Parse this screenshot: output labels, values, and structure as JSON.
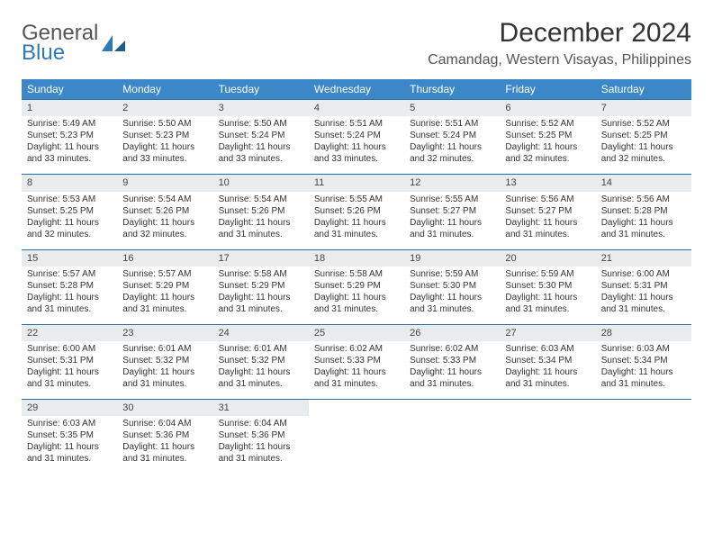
{
  "logo": {
    "line1": "General",
    "line2": "Blue"
  },
  "title": "December 2024",
  "location": "Camandag, Western Visayas, Philippines",
  "headerBg": "#3b87c8",
  "borderColor": "#2f6fa8",
  "dayNumBg": "#e9ecef",
  "weekdays": [
    "Sunday",
    "Monday",
    "Tuesday",
    "Wednesday",
    "Thursday",
    "Friday",
    "Saturday"
  ],
  "days": [
    {
      "n": "1",
      "sr": "5:49 AM",
      "ss": "5:23 PM",
      "dl": "11 hours and 33 minutes."
    },
    {
      "n": "2",
      "sr": "5:50 AM",
      "ss": "5:23 PM",
      "dl": "11 hours and 33 minutes."
    },
    {
      "n": "3",
      "sr": "5:50 AM",
      "ss": "5:24 PM",
      "dl": "11 hours and 33 minutes."
    },
    {
      "n": "4",
      "sr": "5:51 AM",
      "ss": "5:24 PM",
      "dl": "11 hours and 33 minutes."
    },
    {
      "n": "5",
      "sr": "5:51 AM",
      "ss": "5:24 PM",
      "dl": "11 hours and 32 minutes."
    },
    {
      "n": "6",
      "sr": "5:52 AM",
      "ss": "5:25 PM",
      "dl": "11 hours and 32 minutes."
    },
    {
      "n": "7",
      "sr": "5:52 AM",
      "ss": "5:25 PM",
      "dl": "11 hours and 32 minutes."
    },
    {
      "n": "8",
      "sr": "5:53 AM",
      "ss": "5:25 PM",
      "dl": "11 hours and 32 minutes."
    },
    {
      "n": "9",
      "sr": "5:54 AM",
      "ss": "5:26 PM",
      "dl": "11 hours and 32 minutes."
    },
    {
      "n": "10",
      "sr": "5:54 AM",
      "ss": "5:26 PM",
      "dl": "11 hours and 31 minutes."
    },
    {
      "n": "11",
      "sr": "5:55 AM",
      "ss": "5:26 PM",
      "dl": "11 hours and 31 minutes."
    },
    {
      "n": "12",
      "sr": "5:55 AM",
      "ss": "5:27 PM",
      "dl": "11 hours and 31 minutes."
    },
    {
      "n": "13",
      "sr": "5:56 AM",
      "ss": "5:27 PM",
      "dl": "11 hours and 31 minutes."
    },
    {
      "n": "14",
      "sr": "5:56 AM",
      "ss": "5:28 PM",
      "dl": "11 hours and 31 minutes."
    },
    {
      "n": "15",
      "sr": "5:57 AM",
      "ss": "5:28 PM",
      "dl": "11 hours and 31 minutes."
    },
    {
      "n": "16",
      "sr": "5:57 AM",
      "ss": "5:29 PM",
      "dl": "11 hours and 31 minutes."
    },
    {
      "n": "17",
      "sr": "5:58 AM",
      "ss": "5:29 PM",
      "dl": "11 hours and 31 minutes."
    },
    {
      "n": "18",
      "sr": "5:58 AM",
      "ss": "5:29 PM",
      "dl": "11 hours and 31 minutes."
    },
    {
      "n": "19",
      "sr": "5:59 AM",
      "ss": "5:30 PM",
      "dl": "11 hours and 31 minutes."
    },
    {
      "n": "20",
      "sr": "5:59 AM",
      "ss": "5:30 PM",
      "dl": "11 hours and 31 minutes."
    },
    {
      "n": "21",
      "sr": "6:00 AM",
      "ss": "5:31 PM",
      "dl": "11 hours and 31 minutes."
    },
    {
      "n": "22",
      "sr": "6:00 AM",
      "ss": "5:31 PM",
      "dl": "11 hours and 31 minutes."
    },
    {
      "n": "23",
      "sr": "6:01 AM",
      "ss": "5:32 PM",
      "dl": "11 hours and 31 minutes."
    },
    {
      "n": "24",
      "sr": "6:01 AM",
      "ss": "5:32 PM",
      "dl": "11 hours and 31 minutes."
    },
    {
      "n": "25",
      "sr": "6:02 AM",
      "ss": "5:33 PM",
      "dl": "11 hours and 31 minutes."
    },
    {
      "n": "26",
      "sr": "6:02 AM",
      "ss": "5:33 PM",
      "dl": "11 hours and 31 minutes."
    },
    {
      "n": "27",
      "sr": "6:03 AM",
      "ss": "5:34 PM",
      "dl": "11 hours and 31 minutes."
    },
    {
      "n": "28",
      "sr": "6:03 AM",
      "ss": "5:34 PM",
      "dl": "11 hours and 31 minutes."
    },
    {
      "n": "29",
      "sr": "6:03 AM",
      "ss": "5:35 PM",
      "dl": "11 hours and 31 minutes."
    },
    {
      "n": "30",
      "sr": "6:04 AM",
      "ss": "5:36 PM",
      "dl": "11 hours and 31 minutes."
    },
    {
      "n": "31",
      "sr": "6:04 AM",
      "ss": "5:36 PM",
      "dl": "11 hours and 31 minutes."
    }
  ],
  "labels": {
    "sunrise": "Sunrise: ",
    "sunset": "Sunset: ",
    "daylight": "Daylight: "
  }
}
